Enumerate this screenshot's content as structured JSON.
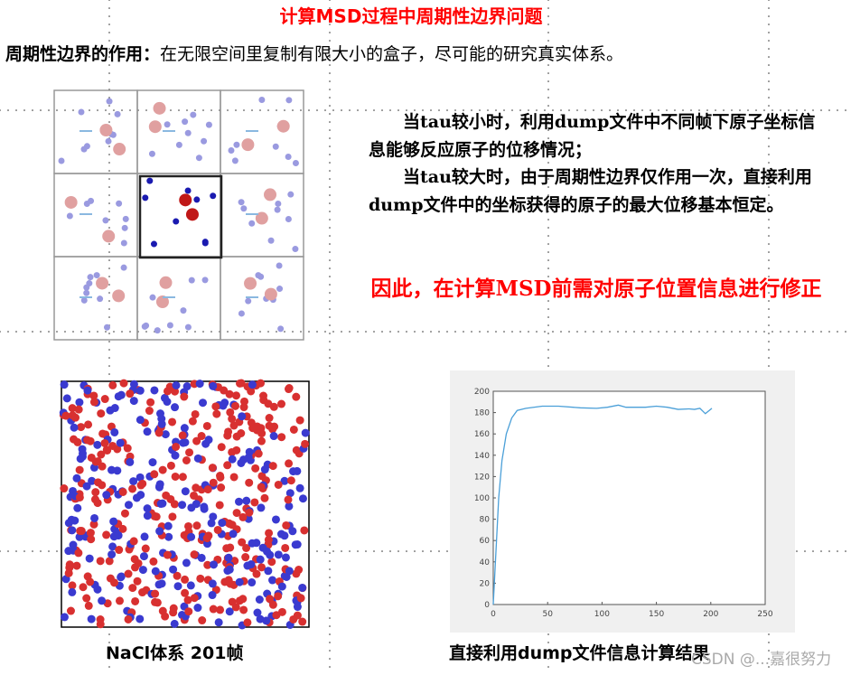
{
  "title": "计算MSD过程中周期性边界问题",
  "subtitle": {
    "label": "周期性边界的作用：",
    "text": "在无限空间里复制有限大小的盒子，尽可能的研究真实体系。"
  },
  "description": [
    "当tau较小时，利用dump文件中不同帧下原子坐标信息能够反应原子的位移情况；",
    "当tau较大时，由于周期性边界仅作用一次，直接利用dump文件中的坐标获得的原子的最大位移基本恒定。"
  ],
  "conclusion": "因此，在计算MSD前需对原子位置信息进行修正",
  "captions": {
    "left": "NaCl体系 201帧",
    "right": "直接利用dump文件信息计算结果"
  },
  "watermark": "CSDN @...嘉很努力",
  "colors": {
    "title": "#ff0000",
    "line": "#4a9fd8",
    "na": "#3a3ad0",
    "cl": "#d83030"
  },
  "chart_data": {
    "type": "line",
    "x": [
      0,
      2,
      5,
      8,
      12,
      17,
      22,
      30,
      45,
      60,
      80,
      95,
      105,
      115,
      122,
      140,
      150,
      160,
      170,
      180,
      185,
      190,
      195,
      201
    ],
    "y": [
      0,
      40,
      100,
      135,
      160,
      175,
      182,
      184,
      186,
      186,
      184.5,
      184,
      185,
      187,
      185,
      185,
      186,
      185,
      183,
      183.5,
      183,
      184,
      179,
      184
    ],
    "xlim": [
      0,
      250
    ],
    "ylim": [
      0,
      200
    ],
    "xticks": [
      0,
      50,
      100,
      150,
      200,
      250
    ],
    "yticks": [
      0,
      20,
      40,
      60,
      80,
      100,
      120,
      140,
      160,
      180,
      200
    ],
    "grid": false
  }
}
